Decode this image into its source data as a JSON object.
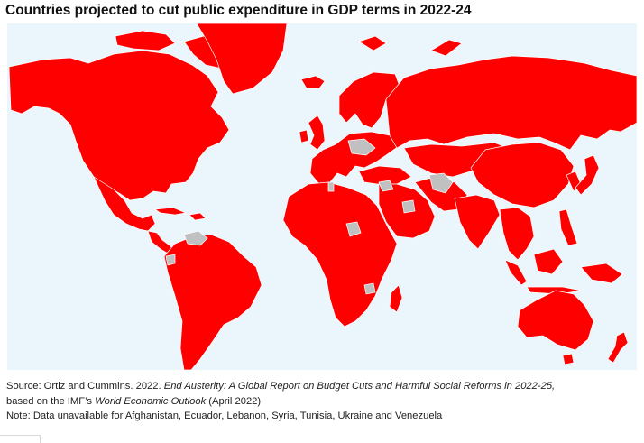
{
  "title": "Countries projected to cut public expenditure in GDP terms in 2022-24",
  "source": {
    "prefix": "Source: Ortiz and Cummins. 2022. ",
    "report_title": "End Austerity: A Global Report on Budget Cuts and Harmful Social Reforms in 2022-25,",
    "line2_prefix": "based on the IMF’s ",
    "outlook_title": "World Economic Outlook",
    "line2_suffix": " (April 2022)"
  },
  "note": "Note: Data unavailable for Afghanistan, Ecuador, Lebanon, Syria, Tunisia, Ukraine and Venezuela",
  "colors": {
    "cut": "#ff0000",
    "unavailable": "#c0c0c0",
    "ocean": "#eaf5fc",
    "border": "#ffffff"
  }
}
